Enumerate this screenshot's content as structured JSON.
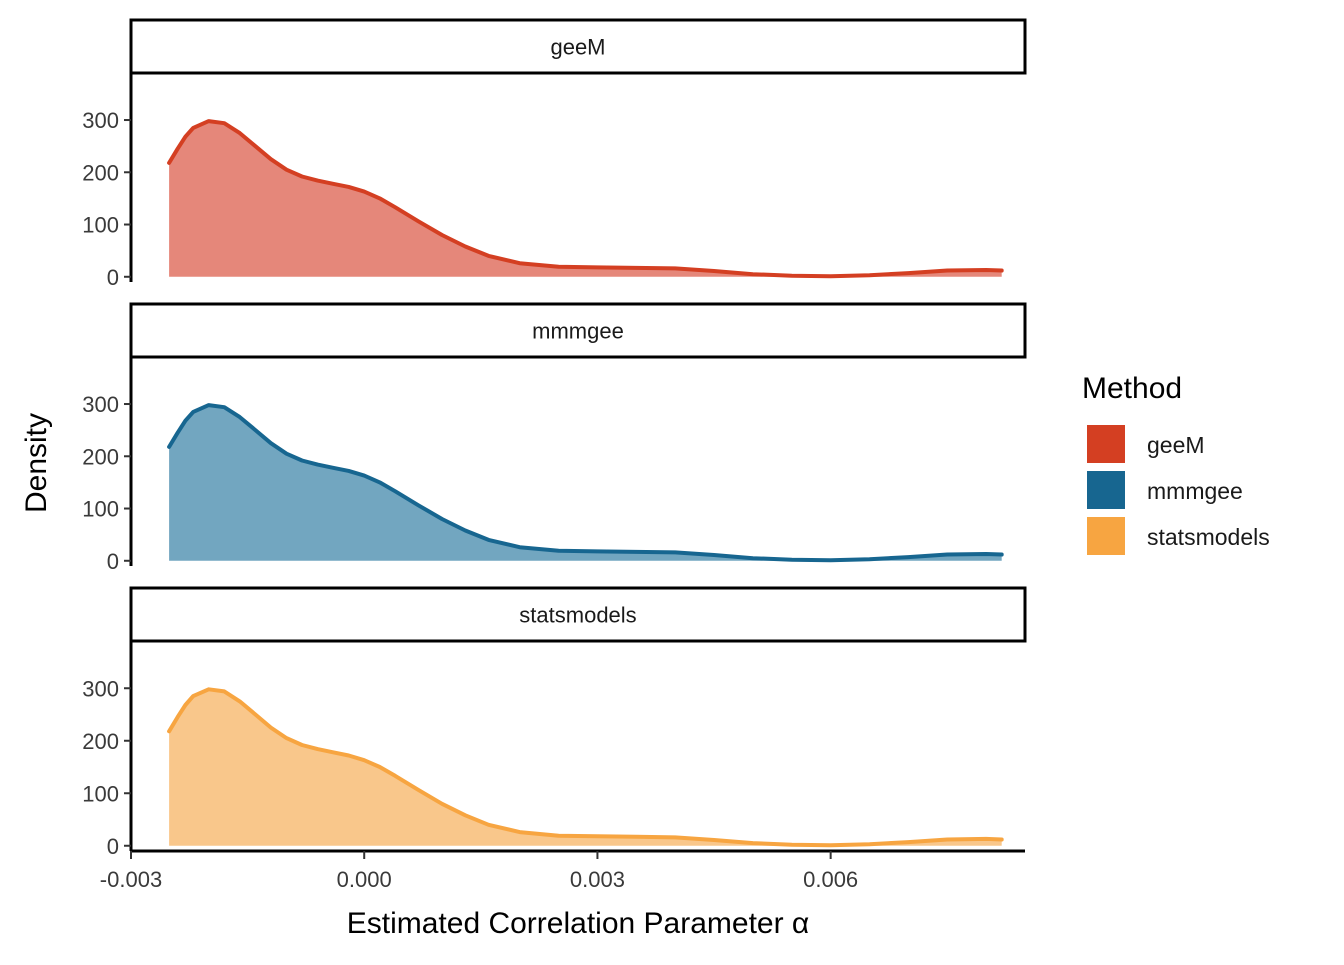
{
  "chart_data": {
    "type": "area",
    "facets": [
      "geeM",
      "mmmgee",
      "statsmodels"
    ],
    "xlabel": "Estimated Correlation Parameter α",
    "ylabel": "Density",
    "xlim": [
      -0.003,
      0.0085
    ],
    "ylim": [
      -10,
      390
    ],
    "x_ticks": [
      -0.003,
      0.0,
      0.003,
      0.006
    ],
    "x_tick_labels": [
      "-0.003",
      "0.000",
      "0.003",
      "0.006"
    ],
    "y_ticks": [
      0,
      100,
      200,
      300
    ],
    "y_tick_labels": [
      "0",
      "100",
      "200",
      "300"
    ],
    "grid": false,
    "legend": {
      "title": "Method",
      "placement": "right",
      "items": [
        "geeM",
        "mmmgee",
        "statsmodels"
      ]
    },
    "series": [
      {
        "name": "geeM",
        "line_color": "#D43F22",
        "fill_color": "#E5877A",
        "x": [
          -0.00251,
          -0.0024,
          -0.0023,
          -0.0022,
          -0.002,
          -0.0018,
          -0.0016,
          -0.0014,
          -0.0012,
          -0.001,
          -0.0008,
          -0.0006,
          -0.0004,
          -0.0002,
          0.0,
          0.0002,
          0.0004,
          0.0007,
          0.001,
          0.0013,
          0.0016,
          0.002,
          0.0025,
          0.003,
          0.0035,
          0.004,
          0.0045,
          0.005,
          0.0055,
          0.006,
          0.0065,
          0.007,
          0.0075,
          0.008,
          0.0082
        ],
        "y": [
          218,
          245,
          268,
          285,
          298,
          294,
          275,
          250,
          225,
          205,
          192,
          184,
          178,
          172,
          163,
          150,
          133,
          106,
          80,
          58,
          40,
          26,
          19,
          18,
          17,
          16,
          11,
          5,
          2,
          1,
          3,
          7,
          12,
          13,
          12
        ]
      },
      {
        "name": "mmmgee",
        "line_color": "#176690",
        "fill_color": "#72A6C0",
        "x": [
          -0.00251,
          -0.0024,
          -0.0023,
          -0.0022,
          -0.002,
          -0.0018,
          -0.0016,
          -0.0014,
          -0.0012,
          -0.001,
          -0.0008,
          -0.0006,
          -0.0004,
          -0.0002,
          0.0,
          0.0002,
          0.0004,
          0.0007,
          0.001,
          0.0013,
          0.0016,
          0.002,
          0.0025,
          0.003,
          0.0035,
          0.004,
          0.0045,
          0.005,
          0.0055,
          0.006,
          0.0065,
          0.007,
          0.0075,
          0.008,
          0.0082
        ],
        "y": [
          218,
          245,
          268,
          285,
          298,
          294,
          275,
          250,
          225,
          205,
          192,
          184,
          178,
          172,
          163,
          150,
          133,
          106,
          80,
          58,
          40,
          26,
          19,
          18,
          17,
          16,
          11,
          5,
          2,
          1,
          3,
          7,
          12,
          13,
          12
        ]
      },
      {
        "name": "statsmodels",
        "line_color": "#F7A541",
        "fill_color": "#F9C78B",
        "x": [
          -0.00251,
          -0.0024,
          -0.0023,
          -0.0022,
          -0.002,
          -0.0018,
          -0.0016,
          -0.0014,
          -0.0012,
          -0.001,
          -0.0008,
          -0.0006,
          -0.0004,
          -0.0002,
          0.0,
          0.0002,
          0.0004,
          0.0007,
          0.001,
          0.0013,
          0.0016,
          0.002,
          0.0025,
          0.003,
          0.0035,
          0.004,
          0.0045,
          0.005,
          0.0055,
          0.006,
          0.0065,
          0.007,
          0.0075,
          0.008,
          0.0082
        ],
        "y": [
          218,
          245,
          268,
          285,
          298,
          294,
          275,
          250,
          225,
          205,
          192,
          184,
          178,
          172,
          163,
          150,
          133,
          106,
          80,
          58,
          40,
          26,
          19,
          18,
          17,
          16,
          11,
          5,
          2,
          1,
          3,
          7,
          12,
          13,
          12
        ]
      }
    ]
  }
}
